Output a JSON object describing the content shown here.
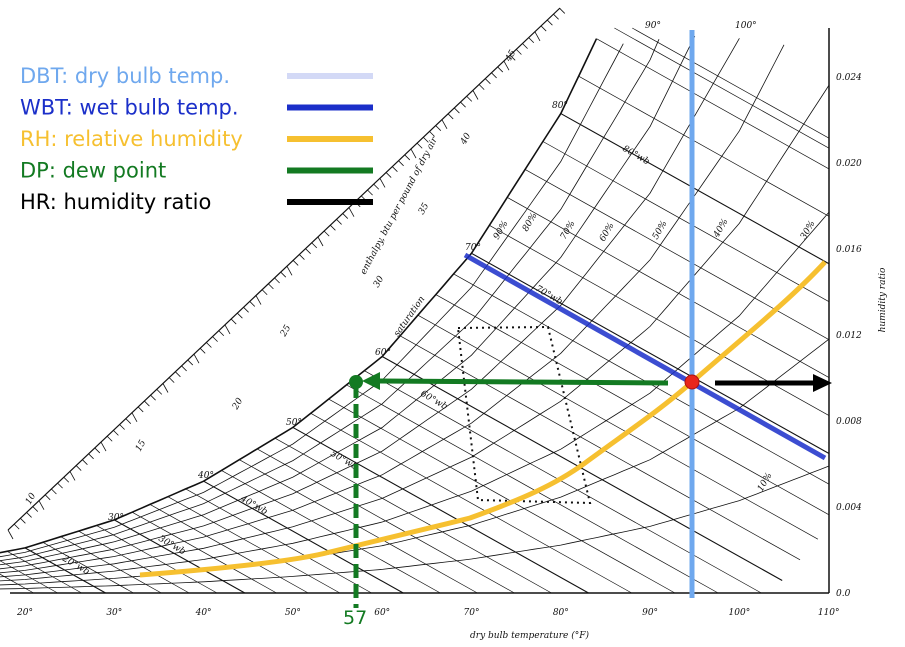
{
  "legend": [
    {
      "label": "DBT: dry bulb temp.",
      "text_color": "#6fa8ee",
      "line_color": "#d3d9f6"
    },
    {
      "label": "WBT: wet bulb temp.",
      "text_color": "#1b2fc9",
      "line_color": "#1b2fc9"
    },
    {
      "label": "RH: relative humidity",
      "text_color": "#f6c030",
      "line_color": "#f6c030"
    },
    {
      "label": "DP: dew point",
      "text_color": "#137a22",
      "line_color": "#137a22"
    },
    {
      "label": "HR: humidity ratio",
      "text_color": "#000000",
      "line_color": "#000000"
    }
  ],
  "x_axis": {
    "title": "dry bulb temperature (°F)",
    "ticks": [
      "20°",
      "30°",
      "40°",
      "50°",
      "60°",
      "70°",
      "80°",
      "90°",
      "100°",
      "110°"
    ]
  },
  "y_axis": {
    "title": "humidity ratio",
    "ticks": [
      "0.0",
      "0.004",
      "0.008",
      "0.012",
      "0.016",
      "0.020",
      "0.024"
    ]
  },
  "enthalpy": {
    "title": "enthalpy, btu per pound of dry air",
    "ticks": [
      "10",
      "15",
      "20",
      "25",
      "30",
      "35",
      "40",
      "45"
    ]
  },
  "saturation_label": "saturation",
  "saturation_temps": [
    "30°",
    "40°",
    "50°",
    "60°",
    "70°",
    "80°",
    "90°",
    "100°"
  ],
  "rh_labels": [
    "90%",
    "80%",
    "70%",
    "60%",
    "50%",
    "40%",
    "30%",
    "10%"
  ],
  "wb_labels": [
    "20°wb",
    "30°wb",
    "40°wb",
    "50°wb",
    "60°wb",
    "70°wb",
    "80°wb"
  ],
  "dew_point_value": "57"
}
